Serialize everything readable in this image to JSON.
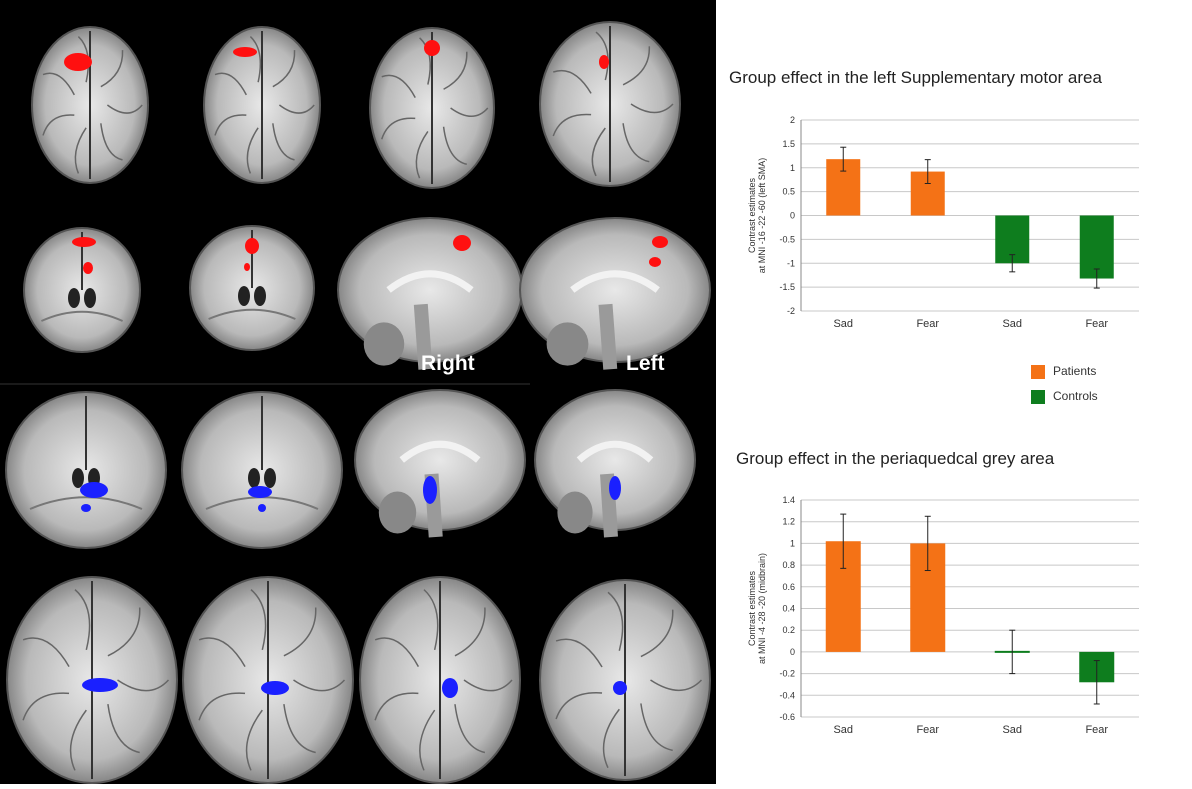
{
  "brain_panel": {
    "labels": [
      "Right",
      "Left"
    ]
  },
  "colors": {
    "patients": "#f47216",
    "controls": "#0e7d1e",
    "activation_red": "#ff1010",
    "activation_blue": "#1a20ff"
  },
  "legend": [
    {
      "name": "Patients",
      "color": "#f47216"
    },
    {
      "name": "Controls",
      "color": "#0e7d1e"
    }
  ],
  "chart_data": [
    {
      "type": "bar",
      "title": "Group effect in the left Supplementary motor area",
      "ylabel": "Contrast estimates at MNI -16 -22 -60 (left SMA)",
      "categories": [
        "Sad",
        "Fear",
        "Sad",
        "Fear"
      ],
      "values": [
        1.18,
        0.92,
        -1.0,
        -1.32
      ],
      "errors": [
        0.25,
        0.25,
        0.18,
        0.2
      ],
      "groups": [
        "Patients",
        "Patients",
        "Controls",
        "Controls"
      ],
      "ylim": [
        -2,
        2
      ],
      "yticks": [
        -2,
        -1.5,
        -1,
        -0.5,
        0,
        0.5,
        1,
        1.5,
        2
      ],
      "ytick_labels": [
        "-2",
        "-1.5",
        "-1",
        "-0.5",
        "0",
        "0.5",
        "1",
        "1.5",
        "2"
      ],
      "grid": true
    },
    {
      "type": "bar",
      "title": "Group effect in the periaquedcal grey area",
      "ylabel": "Contrast estimates at MNI -4 -28 -20 (midbrain)",
      "categories": [
        "Sad",
        "Fear",
        "Sad",
        "Fear"
      ],
      "values": [
        1.02,
        1.0,
        0.0,
        -0.28
      ],
      "errors": [
        0.25,
        0.25,
        0.2,
        0.2
      ],
      "groups": [
        "Patients",
        "Patients",
        "Controls",
        "Controls"
      ],
      "ylim": [
        -0.6,
        1.4
      ],
      "yticks": [
        -0.6,
        -0.4,
        -0.2,
        0,
        0.2,
        0.4,
        0.6,
        0.8,
        1,
        1.2,
        1.4
      ],
      "ytick_labels": [
        "-0.6",
        "-0.4",
        "-0.2",
        "0",
        "0.2",
        "0.4",
        "0.6",
        "0.8",
        "1",
        "1.2",
        "1.4"
      ],
      "grid": true
    }
  ]
}
